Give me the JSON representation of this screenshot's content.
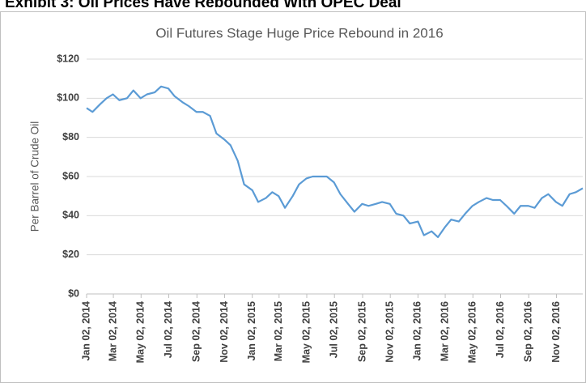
{
  "chart_data": {
    "type": "line",
    "heading": "Exhibit 3: Oil Prices Have Rebounded With OPEC Deal",
    "title": "Oil Futures Stage Huge Price Rebound  in 2016",
    "y_label": "Per Barrel of Crude Oil",
    "x": [
      "2014-01-02",
      "2014-01-15",
      "2014-02-01",
      "2014-02-15",
      "2014-03-01",
      "2014-03-15",
      "2014-04-01",
      "2014-04-15",
      "2014-05-01",
      "2014-05-15",
      "2014-06-01",
      "2014-06-15",
      "2014-07-01",
      "2014-07-15",
      "2014-08-01",
      "2014-08-15",
      "2014-09-01",
      "2014-09-15",
      "2014-10-01",
      "2014-10-15",
      "2014-11-01",
      "2014-11-15",
      "2014-12-01",
      "2014-12-15",
      "2015-01-02",
      "2015-01-15",
      "2015-02-01",
      "2015-02-15",
      "2015-03-01",
      "2015-03-15",
      "2015-04-01",
      "2015-04-15",
      "2015-05-01",
      "2015-05-15",
      "2015-06-01",
      "2015-06-15",
      "2015-07-01",
      "2015-07-15",
      "2015-08-01",
      "2015-08-15",
      "2015-09-01",
      "2015-09-15",
      "2015-10-01",
      "2015-10-15",
      "2015-11-01",
      "2015-11-15",
      "2015-12-01",
      "2015-12-15",
      "2016-01-02",
      "2016-01-15",
      "2016-02-01",
      "2016-02-15",
      "2016-03-01",
      "2016-03-15",
      "2016-04-01",
      "2016-04-15",
      "2016-05-01",
      "2016-05-15",
      "2016-06-01",
      "2016-06-15",
      "2016-07-01",
      "2016-07-15",
      "2016-08-01",
      "2016-08-15",
      "2016-09-01",
      "2016-09-15",
      "2016-10-01",
      "2016-10-15",
      "2016-11-01",
      "2016-11-15",
      "2016-12-01",
      "2016-12-15",
      "2016-12-30"
    ],
    "series": [
      {
        "name": "Crude Oil",
        "color": "#5b9bd5",
        "values": [
          95,
          93,
          97,
          100,
          102,
          99,
          100,
          104,
          100,
          102,
          103,
          106,
          105,
          101,
          98,
          96,
          93,
          93,
          91,
          82,
          79,
          76,
          68,
          56,
          53,
          47,
          49,
          52,
          50,
          44,
          50,
          56,
          59,
          60,
          60,
          60,
          57,
          51,
          46,
          42,
          46,
          45,
          46,
          47,
          46,
          41,
          40,
          36,
          37,
          30,
          32,
          29,
          34,
          38,
          37,
          41,
          45,
          47,
          49,
          48,
          48,
          45,
          41,
          45,
          45,
          44,
          49,
          51,
          47,
          45,
          51,
          52,
          54
        ]
      }
    ],
    "xlim": [
      "2014-01-02",
      "2016-12-30"
    ],
    "xticks": [
      {
        "value": "2014-01-02",
        "label": "Jan 02, 2014"
      },
      {
        "value": "2014-03-02",
        "label": "Mar 02, 2014"
      },
      {
        "value": "2014-05-02",
        "label": "May 02, 2014"
      },
      {
        "value": "2014-07-02",
        "label": "Jul 02, 2014"
      },
      {
        "value": "2014-09-02",
        "label": "Sep 02, 2014"
      },
      {
        "value": "2014-11-02",
        "label": "Nov 02, 2014"
      },
      {
        "value": "2015-01-02",
        "label": "Jan 02, 2015"
      },
      {
        "value": "2015-03-02",
        "label": "Mar 02, 2015"
      },
      {
        "value": "2015-05-02",
        "label": "May 02, 2015"
      },
      {
        "value": "2015-07-02",
        "label": "Jul 02, 2015"
      },
      {
        "value": "2015-09-02",
        "label": "Sep 02, 2015"
      },
      {
        "value": "2015-11-02",
        "label": "Nov 02, 2015"
      },
      {
        "value": "2016-01-02",
        "label": "Jan 02, 2016"
      },
      {
        "value": "2016-03-02",
        "label": "Mar 02, 2016"
      },
      {
        "value": "2016-05-02",
        "label": "May 02, 2016"
      },
      {
        "value": "2016-07-02",
        "label": "Jul 02, 2016"
      },
      {
        "value": "2016-09-02",
        "label": "Sep 02, 2016"
      },
      {
        "value": "2016-11-02",
        "label": "Nov 02, 2016"
      }
    ],
    "ylim": [
      0,
      120
    ],
    "yticks": [
      {
        "value": 0,
        "label": "$0"
      },
      {
        "value": 20,
        "label": "$20"
      },
      {
        "value": 40,
        "label": "$40"
      },
      {
        "value": 60,
        "label": "$60"
      },
      {
        "value": 80,
        "label": "$80"
      },
      {
        "value": 100,
        "label": "$100"
      },
      {
        "value": 120,
        "label": "$120"
      }
    ],
    "grid": true
  }
}
